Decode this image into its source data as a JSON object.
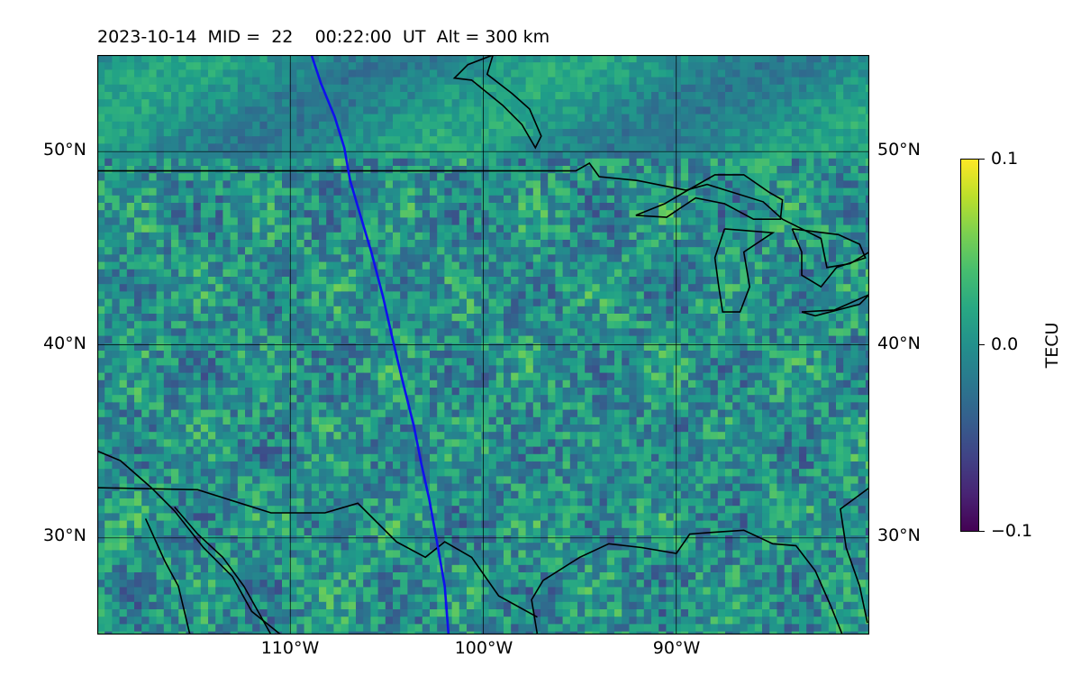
{
  "title": {
    "date": "2023-10-14",
    "mid_label": "MID =",
    "mid_value": "22",
    "time": "00:22:00",
    "time_unit": "UT",
    "alt_label": "Alt = 300 km"
  },
  "map": {
    "projection": "equirectangular",
    "lon_range": [
      -120,
      -80
    ],
    "lat_range": [
      25,
      55
    ],
    "gridlines": true,
    "lat_ticks": [
      {
        "value": 30,
        "label": "30°N"
      },
      {
        "value": 40,
        "label": "40°N"
      },
      {
        "value": 50,
        "label": "50°N"
      }
    ],
    "lon_ticks": [
      {
        "value": -110,
        "label": "110°W"
      },
      {
        "value": -100,
        "label": "100°W"
      },
      {
        "value": -90,
        "label": "90°W"
      }
    ],
    "colormap": "viridis",
    "field": "detrended TEC perturbation",
    "track_color": "#1010ee",
    "track_points": [
      [
        -108.9,
        55.0
      ],
      [
        -108.4,
        53.5
      ],
      [
        -107.7,
        51.8
      ],
      [
        -107.2,
        50.2
      ],
      [
        -106.9,
        48.5
      ],
      [
        -106.4,
        46.8
      ],
      [
        -105.8,
        44.8
      ],
      [
        -105.2,
        42.5
      ],
      [
        -104.7,
        40.3
      ],
      [
        -104.2,
        38.2
      ],
      [
        -103.6,
        35.8
      ],
      [
        -103.2,
        33.8
      ],
      [
        -102.8,
        32.0
      ],
      [
        -102.4,
        29.8
      ],
      [
        -102.0,
        27.5
      ],
      [
        -101.8,
        25.0
      ]
    ],
    "coastlines": [
      [
        [
          -120.0,
          34.5
        ],
        [
          -118.8,
          34.0
        ],
        [
          -117.2,
          32.6
        ],
        [
          -116.0,
          31.4
        ],
        [
          -114.5,
          29.5
        ],
        [
          -113.0,
          28.0
        ],
        [
          -112.0,
          26.2
        ],
        [
          -110.5,
          25.0
        ]
      ],
      [
        [
          -116.0,
          31.6
        ],
        [
          -114.8,
          30.2
        ],
        [
          -113.5,
          29.0
        ],
        [
          -112.4,
          27.5
        ],
        [
          -111.0,
          25.0
        ]
      ],
      [
        [
          -117.5,
          31.0
        ],
        [
          -116.5,
          28.8
        ],
        [
          -115.8,
          27.5
        ],
        [
          -115.2,
          25.0
        ]
      ],
      [
        [
          -97.2,
          25.0
        ],
        [
          -97.5,
          26.8
        ],
        [
          -96.9,
          27.8
        ],
        [
          -95.0,
          29.0
        ],
        [
          -93.5,
          29.7
        ],
        [
          -91.8,
          29.5
        ],
        [
          -90.0,
          29.2
        ],
        [
          -89.3,
          30.2
        ],
        [
          -88.0,
          30.3
        ],
        [
          -86.5,
          30.4
        ],
        [
          -85.0,
          29.7
        ],
        [
          -83.8,
          29.6
        ],
        [
          -82.8,
          28.3
        ],
        [
          -82.0,
          26.5
        ],
        [
          -81.4,
          25.0
        ]
      ],
      [
        [
          -80.1,
          25.6
        ],
        [
          -80.5,
          27.5
        ],
        [
          -81.2,
          29.5
        ],
        [
          -81.5,
          31.5
        ],
        [
          -80.0,
          32.6
        ]
      ],
      [
        [
          -99.5,
          55.0
        ],
        [
          -99.8,
          54.0
        ],
        [
          -98.5,
          53.0
        ],
        [
          -97.6,
          52.2
        ],
        [
          -97.0,
          50.8
        ],
        [
          -97.3,
          50.2
        ],
        [
          -98.0,
          51.4
        ],
        [
          -99.0,
          52.4
        ],
        [
          -100.6,
          53.7
        ],
        [
          -101.5,
          53.8
        ],
        [
          -100.8,
          54.5
        ],
        [
          -99.5,
          55.0
        ]
      ]
    ],
    "borders": [
      [
        [
          -120.0,
          49.0
        ],
        [
          -95.2,
          49.0
        ],
        [
          -94.5,
          49.4
        ],
        [
          -94.0,
          48.7
        ],
        [
          -92.0,
          48.5
        ],
        [
          -89.5,
          48.0
        ],
        [
          -88.4,
          48.3
        ],
        [
          -85.5,
          47.4
        ],
        [
          -84.5,
          46.5
        ],
        [
          -82.5,
          45.5
        ],
        [
          -82.2,
          44.0
        ],
        [
          -81.0,
          44.2
        ],
        [
          -80.0,
          44.8
        ]
      ],
      [
        [
          -120.0,
          32.6
        ],
        [
          -114.8,
          32.5
        ],
        [
          -111.0,
          31.3
        ],
        [
          -108.2,
          31.3
        ],
        [
          -106.5,
          31.8
        ],
        [
          -104.5,
          29.8
        ],
        [
          -103.0,
          29.0
        ],
        [
          -102.0,
          29.8
        ],
        [
          -100.6,
          29.0
        ],
        [
          -99.2,
          27.0
        ],
        [
          -97.2,
          25.9
        ]
      ],
      [
        [
          -80.0,
          45.5
        ],
        [
          -80.0,
          46.0
        ]
      ]
    ],
    "lakes": [
      [
        [
          -92.1,
          46.7
        ],
        [
          -90.5,
          46.6
        ],
        [
          -89.0,
          47.6
        ],
        [
          -87.5,
          47.3
        ],
        [
          -86.0,
          46.5
        ],
        [
          -84.6,
          46.5
        ],
        [
          -84.5,
          47.5
        ],
        [
          -85.2,
          47.9
        ],
        [
          -86.5,
          48.8
        ],
        [
          -88.0,
          48.8
        ],
        [
          -89.4,
          48.0
        ],
        [
          -90.6,
          47.3
        ],
        [
          -92.1,
          46.7
        ]
      ],
      [
        [
          -87.5,
          46.0
        ],
        [
          -88.0,
          44.5
        ],
        [
          -87.8,
          43.0
        ],
        [
          -87.6,
          41.7
        ],
        [
          -86.7,
          41.7
        ],
        [
          -86.2,
          43.0
        ],
        [
          -86.5,
          44.8
        ],
        [
          -85.0,
          45.8
        ],
        [
          -87.5,
          46.0
        ]
      ],
      [
        [
          -84.0,
          46.0
        ],
        [
          -81.6,
          45.7
        ],
        [
          -80.5,
          45.2
        ],
        [
          -80.2,
          44.5
        ],
        [
          -81.7,
          44.0
        ],
        [
          -82.5,
          43.0
        ],
        [
          -83.5,
          43.6
        ],
        [
          -83.5,
          44.8
        ],
        [
          -84.0,
          46.0
        ]
      ],
      [
        [
          -83.5,
          41.7
        ],
        [
          -81.8,
          41.8
        ],
        [
          -80.0,
          42.6
        ],
        [
          -80.5,
          42.1
        ],
        [
          -82.8,
          41.5
        ],
        [
          -83.5,
          41.7
        ]
      ]
    ]
  },
  "colorbar": {
    "label": "TECU",
    "min": -0.1,
    "max": 0.1,
    "ticks": [
      {
        "value": 0.1,
        "label": "0.1"
      },
      {
        "value": 0.0,
        "label": "0.0"
      },
      {
        "value": -0.1,
        "label": "−0.1"
      }
    ]
  }
}
